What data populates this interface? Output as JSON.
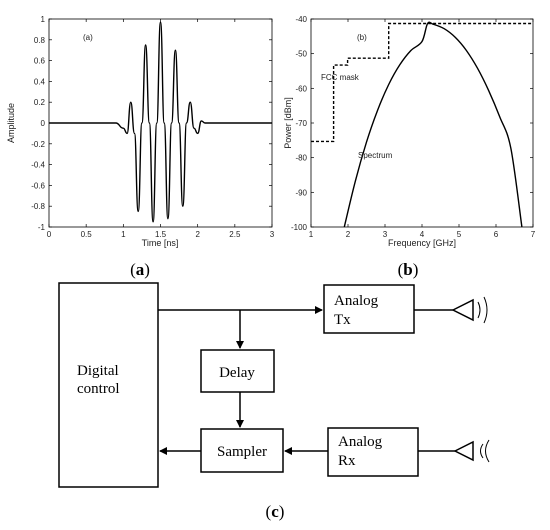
{
  "panel_a": {
    "label": "(a)",
    "xlabel": "Time [ns]",
    "ylabel": "Amplitude",
    "caption_open": "(",
    "caption_letter": "a",
    "caption_close": ")"
  },
  "panel_b": {
    "label": "(b)",
    "xlabel": "Frequency [GHz]",
    "ylabel": "Power [dBm]",
    "mask_label": "FCC mask",
    "spectrum_label": "Spectrum",
    "caption_open": "(",
    "caption_letter": "b",
    "caption_close": ")"
  },
  "panel_c": {
    "digital_control_line1": "Digital",
    "digital_control_line2": "control",
    "analog_tx_line1": "Analog",
    "analog_tx_line2": "Tx",
    "analog_rx_line1": "Analog",
    "analog_rx_line2": "Rx",
    "delay": "Delay",
    "sampler": "Sampler",
    "caption_open": "(",
    "caption_letter": "c",
    "caption_close": ")"
  },
  "chart_data": [
    {
      "type": "line",
      "xlabel": "Time [ns]",
      "ylabel": "Amplitude",
      "xlim": [
        0,
        3
      ],
      "ylim": [
        -1,
        1
      ],
      "xticks": [
        "0",
        "0.5",
        "1",
        "1.5",
        "2",
        "2.5",
        "3"
      ],
      "yticks": [
        "-1",
        "-0.8",
        "-0.6",
        "-0.4",
        "-0.2",
        "0",
        "0.2",
        "0.4",
        "0.6",
        "0.8",
        "1"
      ],
      "series": [
        {
          "x": [
            0,
            0.9,
            1.0,
            1.05,
            1.1,
            1.15,
            1.2,
            1.25,
            1.3,
            1.35,
            1.4,
            1.45,
            1.5,
            1.55,
            1.6,
            1.65,
            1.7,
            1.75,
            1.8,
            1.85,
            1.9,
            1.95,
            2.0,
            2.05,
            2.1,
            2.2,
            3
          ],
          "y": [
            0,
            0,
            -0.05,
            -0.1,
            0.2,
            -0.1,
            -0.85,
            0.0,
            0.75,
            0.0,
            -0.95,
            0.0,
            0.97,
            0.0,
            -0.92,
            0.0,
            0.7,
            0.0,
            -0.8,
            0.0,
            0.2,
            -0.05,
            -0.1,
            0.02,
            0,
            0,
            0
          ]
        }
      ]
    },
    {
      "type": "line",
      "xlabel": "Frequency [GHz]",
      "ylabel": "Power [dBm]",
      "xlim": [
        1,
        7
      ],
      "ylim": [
        -100,
        -40
      ],
      "xticks": [
        "1",
        "2",
        "3",
        "4",
        "5",
        "6",
        "7"
      ],
      "yticks": [
        "-40",
        "-50",
        "-60",
        "-70",
        "-80",
        "-90",
        "-100"
      ],
      "series": [
        {
          "name": "FCC mask",
          "x": [
            1,
            1.61,
            1.61,
            1.99,
            1.99,
            3.1,
            3.1,
            7
          ],
          "y": [
            -75.3,
            -75.3,
            -53.3,
            -53.3,
            -51.3,
            -51.3,
            -41.3,
            -41.3
          ]
        },
        {
          "name": "Spectrum",
          "x": [
            1.9,
            2.2,
            2.5,
            2.8,
            3.1,
            3.4,
            3.7,
            4.0,
            4.15,
            4.3,
            4.6,
            4.9,
            5.2,
            5.5,
            5.8,
            6.1,
            6.4,
            6.7
          ],
          "y": [
            -100,
            -86.7,
            -75.5,
            -66.3,
            -58.9,
            -53.2,
            -49.1,
            -46.5,
            -41.3,
            -41.5,
            -42.8,
            -45.3,
            -49.1,
            -54.2,
            -60.6,
            -68.2,
            -77.2,
            -100
          ]
        }
      ]
    }
  ]
}
